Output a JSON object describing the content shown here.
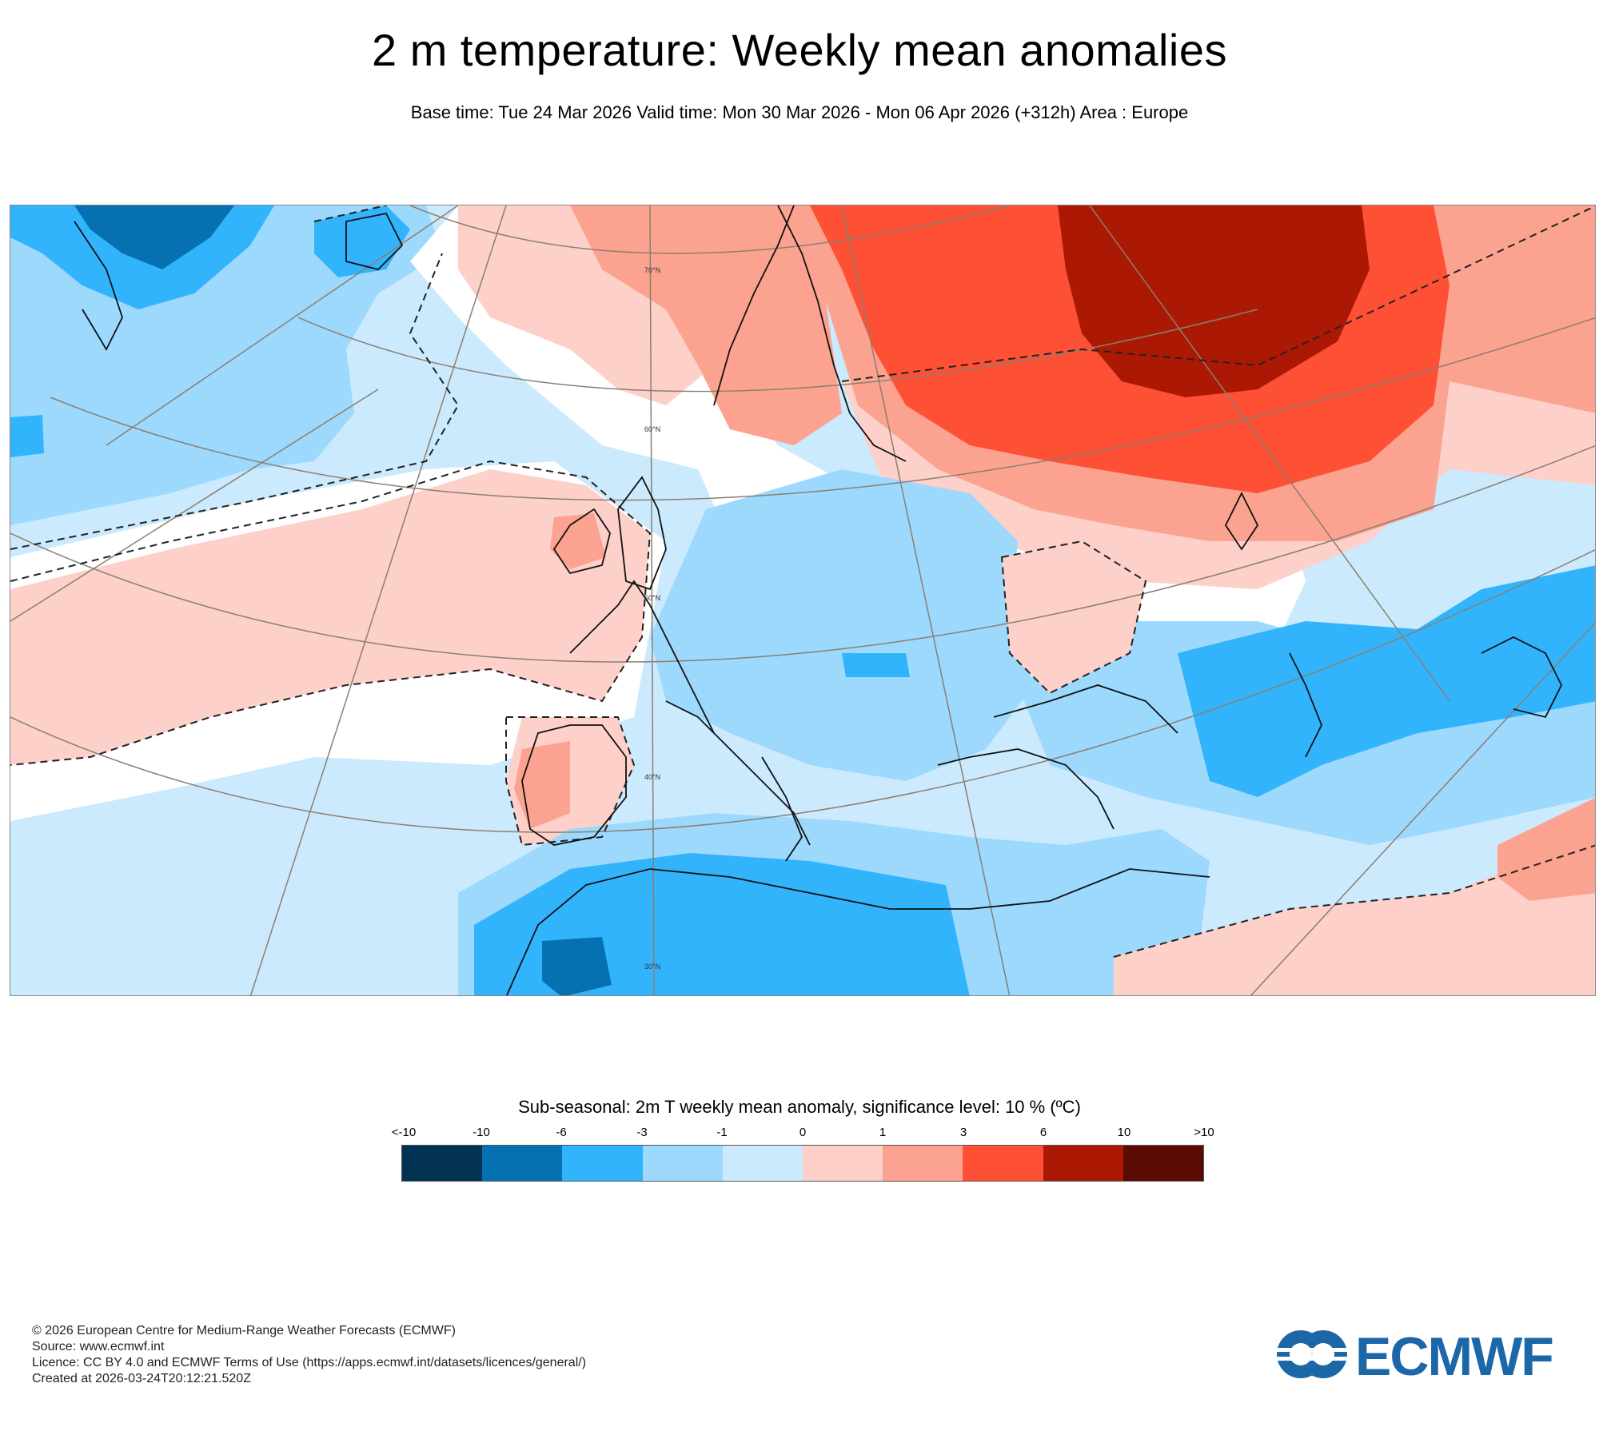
{
  "title": "2 m temperature: Weekly mean anomalies",
  "subtitle": "Base time: Tue 24 Mar 2026 Valid time: Mon 30 Mar 2026 - Mon 06 Apr 2026 (+312h) Area : Europe",
  "map": {
    "area": "Europe",
    "latitude_labels": [
      "70°N",
      "60°N",
      "50°N",
      "40°N",
      "30°N"
    ],
    "colors": {
      "ocean_background": "#cbeafd",
      "coastline": "#111111",
      "graticule": "#8a7f70",
      "significance_contour": "#222222"
    }
  },
  "legend": {
    "title": "Sub-seasonal: 2m T weekly mean anomaly, significance level: 10 % (ºC)",
    "tick_labels": [
      "<-10",
      "-10",
      "-6",
      "-3",
      "-1",
      "0",
      "1",
      "3",
      "6",
      "10",
      ">10"
    ],
    "bins": [
      {
        "range": "< -10",
        "color": "#023352"
      },
      {
        "range": "-10 to -6",
        "color": "#0571b0"
      },
      {
        "range": "-6 to -3",
        "color": "#32b4fd"
      },
      {
        "range": "-3 to -1",
        "color": "#9dd8fd"
      },
      {
        "range": "-1 to 0",
        "color": "#cbeafd"
      },
      {
        "range": "0 to 1",
        "color": "#fdd0c9"
      },
      {
        "range": "1 to 3",
        "color": "#fca290"
      },
      {
        "range": "3 to 6",
        "color": "#fd5035"
      },
      {
        "range": "6 to 10",
        "color": "#ab1904"
      },
      {
        "range": "> 10",
        "color": "#5a0a02"
      }
    ]
  },
  "footer": {
    "copyright": "© 2026 European Centre for Medium-Range Weather Forecasts (ECMWF)",
    "source": "Source: www.ecmwf.int",
    "licence": "Licence: CC BY 4.0 and ECMWF Terms of Use (https://apps.ecmwf.int/datasets/licences/general/)",
    "created": "Created at 2026-03-24T20:12:21.520Z"
  },
  "logo": {
    "text": "ECMWF",
    "color": "#1b67a8"
  }
}
